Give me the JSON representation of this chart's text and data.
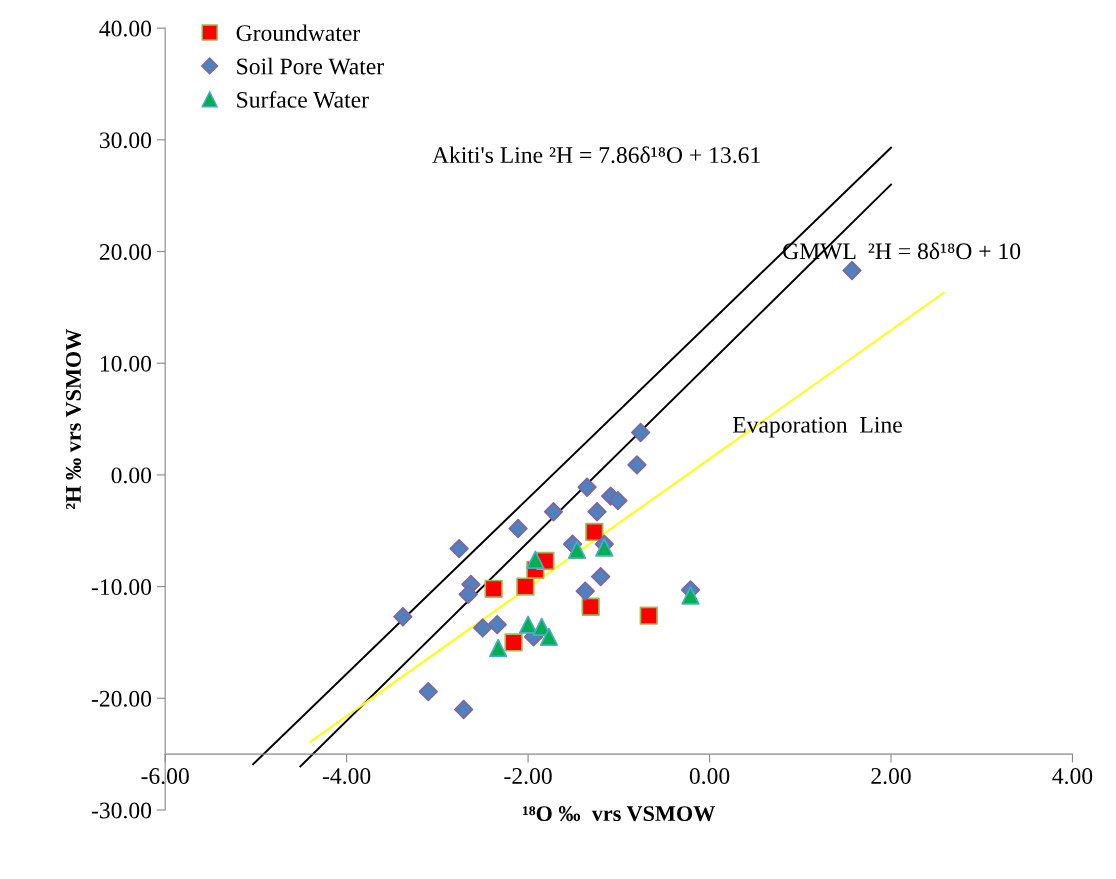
{
  "chart_data": {
    "type": "scatter",
    "xlabel": "¹⁸O ‰  vrs VSMOW",
    "ylabel": "²H ‰ vrs VSMOW",
    "xlim": [
      -6,
      4
    ],
    "ylim": [
      -30,
      40
    ],
    "xticks": [
      {
        "value": -6,
        "label": "-6.00"
      },
      {
        "value": -4,
        "label": "-4.00"
      },
      {
        "value": -2,
        "label": "-2.00"
      },
      {
        "value": 0,
        "label": "0.00"
      },
      {
        "value": 2,
        "label": "2.00"
      },
      {
        "value": 4,
        "label": "4.00"
      }
    ],
    "yticks": [
      {
        "value": -30,
        "label": "-30.00"
      },
      {
        "value": -20,
        "label": "-20.00"
      },
      {
        "value": -10,
        "label": "-10.00"
      },
      {
        "value": 0,
        "label": "0.00"
      },
      {
        "value": 10,
        "label": "10.00"
      },
      {
        "value": 20,
        "label": "20.00"
      },
      {
        "value": 30,
        "label": "30.00"
      },
      {
        "value": 40,
        "label": "40.00"
      }
    ],
    "grid": false,
    "legend": "top left",
    "series": [
      {
        "name": "Groundwater",
        "marker": "square",
        "color": "#ff0000",
        "x": [
          -2.38,
          -2.03,
          -1.92,
          -1.81,
          -1.27,
          -1.31,
          -0.67,
          -2.16
        ],
        "values": [
          -10.2,
          -10.0,
          -8.5,
          -7.7,
          -5.1,
          -11.8,
          -12.6,
          -15.0
        ]
      },
      {
        "name": "Soil Pore Water",
        "marker": "diamond",
        "color": "#4f81bd",
        "x": [
          -0.76,
          -0.8,
          -1.35,
          -1.09,
          -1.01,
          -1.72,
          -1.24,
          -2.11,
          -2.76,
          -1.2,
          -1.37,
          -2.63,
          -2.66,
          -3.38,
          -2.5,
          -2.34,
          -1.94,
          -3.1,
          -2.71,
          -0.21,
          -1.16,
          -1.51,
          1.57
        ],
        "values": [
          3.8,
          0.9,
          -1.1,
          -1.9,
          -2.3,
          -3.3,
          -3.3,
          -4.8,
          -6.6,
          -9.1,
          -10.4,
          -9.8,
          -10.7,
          -12.7,
          -13.7,
          -13.4,
          -14.5,
          -19.4,
          -21.0,
          -10.3,
          -6.2,
          -6.2,
          18.3
        ]
      },
      {
        "name": "Surface Water",
        "marker": "triangle",
        "color": "#00b050",
        "x": [
          -1.92,
          -1.46,
          -1.16,
          -0.21,
          -2.0,
          -1.85,
          -1.77,
          -2.33
        ],
        "values": [
          -7.6,
          -6.7,
          -6.5,
          -10.8,
          -13.4,
          -13.6,
          -14.5,
          -15.5
        ]
      },
      {
        "type": "line",
        "color": "#000000",
        "x": [
          -5.03,
          2.0
        ],
        "values": [
          -25.9,
          29.3
        ]
      },
      {
        "type": "line",
        "color": "#000000",
        "x": [
          -4.51,
          2.0
        ],
        "values": [
          -26.1,
          26.0
        ]
      },
      {
        "type": "line",
        "color": "#ffff00",
        "x": [
          -4.4,
          2.58
        ],
        "values": [
          -23.9,
          16.3
        ]
      }
    ],
    "annotations": [
      "Akiti's Line ²H = 7.86δ¹⁸O + 13.61",
      "GMWL  ²H = 8δ¹⁸O + 10",
      "Evaporation  Line"
    ]
  }
}
